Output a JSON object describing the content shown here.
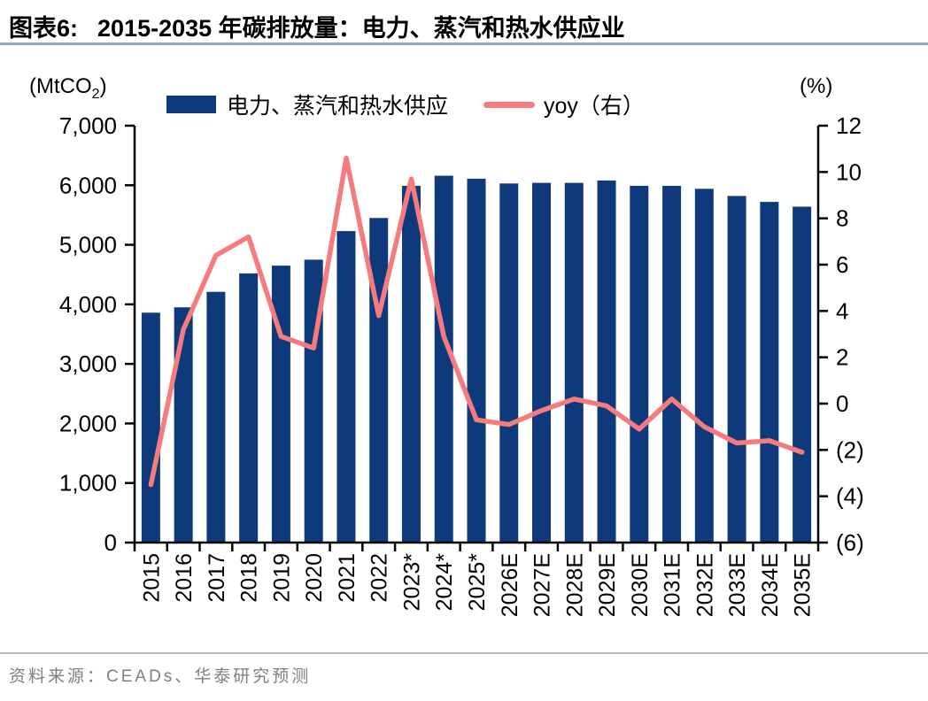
{
  "header": {
    "title_prefix": "图表6:",
    "title_text": "2015-2035 年碳排放量：电力、蒸汽和热水供应业"
  },
  "legend": {
    "bar_label": "电力、蒸汽和热水供应",
    "line_label": "yoy（右）"
  },
  "chart_data": {
    "type": "bar",
    "subtype": "bar+line-dual-axis",
    "categories": [
      "2015",
      "2016",
      "2017",
      "2018",
      "2019",
      "2020",
      "2021",
      "2022",
      "2023*",
      "2024*",
      "2025*",
      "2026E",
      "2027E",
      "2028E",
      "2029E",
      "2030E",
      "2031E",
      "2032E",
      "2033E",
      "2034E",
      "2035E"
    ],
    "series": [
      {
        "name": "电力、蒸汽和热水供应",
        "type": "bar",
        "axis": "left",
        "values": [
          3860,
          3950,
          4210,
          4520,
          4650,
          4750,
          5230,
          5450,
          5990,
          6160,
          6110,
          6030,
          6040,
          6040,
          6080,
          5990,
          5990,
          5940,
          5820,
          5720,
          5640
        ]
      },
      {
        "name": "yoy（右）",
        "type": "line",
        "axis": "right",
        "values": [
          -3.5,
          3.2,
          6.4,
          7.2,
          2.9,
          2.4,
          10.6,
          3.8,
          9.7,
          2.9,
          -0.7,
          -0.9,
          -0.3,
          0.2,
          -0.1,
          -1.1,
          0.2,
          -1.0,
          -1.7,
          -1.6,
          -2.1
        ]
      }
    ],
    "left_axis": {
      "unit_prefix": "(MtCO",
      "unit_sub": "2",
      "unit_suffix": ")",
      "min": 0,
      "max": 7000,
      "tick_step": 1000,
      "tick_labels": [
        "0",
        "1,000",
        "2,000",
        "3,000",
        "4,000",
        "5,000",
        "6,000",
        "7,000"
      ]
    },
    "right_axis": {
      "unit": "(%)",
      "min": -6,
      "max": 12,
      "tick_step": 2,
      "tick_labels": [
        "(6)",
        "(4)",
        "(2)",
        "0",
        "2",
        "4",
        "6",
        "8",
        "10",
        "12"
      ]
    },
    "legend_position": "top",
    "grid": false
  },
  "source": {
    "label": "资料来源：CEADs、华泰研究预测"
  },
  "colors": {
    "bar": "#0e3a7b",
    "line": "#f57b7e",
    "axis": "#000000",
    "title_rule": "#8fa9c4",
    "source_rule": "#b5b5b5",
    "source_text": "#7f7f7f"
  }
}
